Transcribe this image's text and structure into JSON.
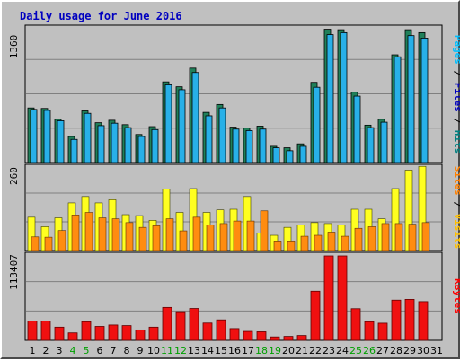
{
  "chart_data": [
    {
      "type": "bar",
      "title": "Daily usage for June 2016",
      "categories": [
        "1",
        "2",
        "3",
        "4",
        "5",
        "6",
        "7",
        "8",
        "9",
        "10",
        "11",
        "12",
        "13",
        "14",
        "15",
        "16",
        "17",
        "18",
        "19",
        "20",
        "21",
        "22",
        "23",
        "24",
        "25",
        "26",
        "27",
        "28",
        "29",
        "30",
        "31"
      ],
      "weekend_days": [
        "4",
        "5",
        "11",
        "12",
        "18",
        "19",
        "25",
        "26"
      ],
      "ymax_label": "1360",
      "ylim": [
        0,
        1360
      ],
      "legend": [
        "Pages",
        "Files",
        "Hits"
      ],
      "series": [
        {
          "name": "Hits",
          "color": "#20805a",
          "values": [
            555,
            550,
            440,
            265,
            525,
            405,
            430,
            385,
            285,
            365,
            820,
            770,
            960,
            510,
            590,
            360,
            350,
            370,
            165,
            150,
            190,
            815,
            1355,
            1350,
            715,
            380,
            440,
            1095,
            1350,
            1320,
            0
          ]
        },
        {
          "name": "Files",
          "color": "#28b0e8",
          "values": [
            540,
            530,
            425,
            235,
            500,
            375,
            400,
            355,
            265,
            335,
            790,
            740,
            915,
            475,
            555,
            340,
            325,
            340,
            150,
            120,
            165,
            765,
            1300,
            1320,
            675,
            355,
            410,
            1075,
            1290,
            1265,
            0
          ]
        },
        {
          "name": "Pages",
          "color": "#000000",
          "values": [
            0,
            0,
            0,
            0,
            0,
            0,
            0,
            0,
            0,
            0,
            0,
            0,
            0,
            0,
            0,
            0,
            0,
            0,
            0,
            0,
            0,
            0,
            0,
            0,
            0,
            0,
            0,
            0,
            0,
            0,
            0
          ]
        }
      ]
    },
    {
      "type": "bar",
      "categories": [
        "1",
        "2",
        "3",
        "4",
        "5",
        "6",
        "7",
        "8",
        "9",
        "10",
        "11",
        "12",
        "13",
        "14",
        "15",
        "16",
        "17",
        "18",
        "19",
        "20",
        "21",
        "22",
        "23",
        "24",
        "25",
        "26",
        "27",
        "28",
        "29",
        "30",
        "31"
      ],
      "ymax_label": "260",
      "ylim": [
        0,
        260
      ],
      "legend": [
        "Sites",
        "Visits"
      ],
      "series": [
        {
          "name": "Visits",
          "color": "#ffff20",
          "values": [
            105,
            75,
            103,
            150,
            170,
            150,
            160,
            113,
            110,
            95,
            193,
            120,
            195,
            120,
            128,
            130,
            170,
            55,
            48,
            73,
            80,
            88,
            85,
            80,
            130,
            130,
            100,
            195,
            253,
            265,
            0
          ]
        },
        {
          "name": "Sites",
          "color": "#ff8c10",
          "values": [
            43,
            42,
            63,
            112,
            120,
            103,
            100,
            88,
            73,
            78,
            100,
            62,
            105,
            80,
            85,
            93,
            93,
            125,
            30,
            30,
            45,
            48,
            58,
            45,
            70,
            75,
            85,
            85,
            83,
            88,
            0
          ]
        }
      ]
    },
    {
      "type": "bar",
      "categories": [
        "1",
        "2",
        "3",
        "4",
        "5",
        "6",
        "7",
        "8",
        "9",
        "10",
        "11",
        "12",
        "13",
        "14",
        "15",
        "16",
        "17",
        "18",
        "19",
        "20",
        "21",
        "22",
        "23",
        "24",
        "25",
        "26",
        "27",
        "28",
        "29",
        "30",
        "31"
      ],
      "ymax_label": "113407",
      "ylim": [
        0,
        113407
      ],
      "legend": [
        "KBytes"
      ],
      "series": [
        {
          "name": "KBytes",
          "color": "#f01010",
          "values": [
            26000,
            26000,
            17700,
            10000,
            25000,
            18700,
            20600,
            19800,
            14000,
            17700,
            44200,
            38500,
            42800,
            23200,
            27500,
            15800,
            12000,
            11500,
            4600,
            5300,
            6500,
            66000,
            113400,
            113400,
            42500,
            25000,
            23000,
            54000,
            55000,
            52000,
            0
          ]
        }
      ]
    }
  ],
  "colors": {
    "plot_bg": "#c0c0c0",
    "grid": "#808080",
    "title_text": "#0000c0",
    "weekday_label": "#000000",
    "weekend_label": "#00a000",
    "legend_pages": "#00c0ff",
    "legend_files": "#0000c0",
    "legend_hits": "#008080",
    "legend_sites": "#ff8000",
    "legend_visits": "#ffc000",
    "legend_kbytes": "#ff0000",
    "separator": "#000000"
  }
}
